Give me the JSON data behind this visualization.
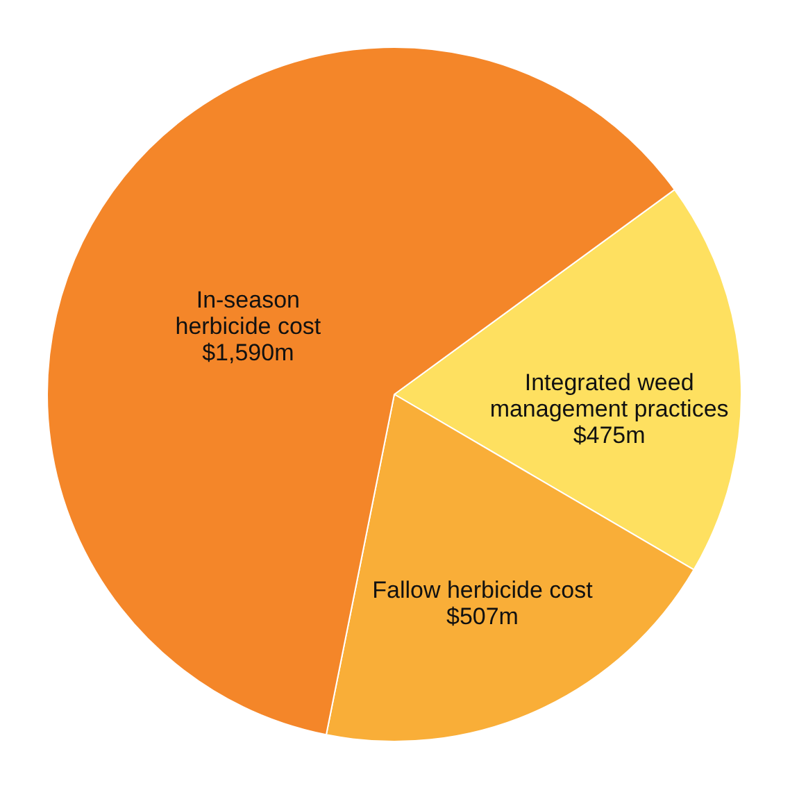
{
  "chart_data": {
    "type": "pie",
    "categories": [
      "Integrated weed management practices",
      "Fallow herbicide cost",
      "In-season herbicide cost"
    ],
    "values": [
      475,
      507,
      1590
    ],
    "colors": [
      "#fee060",
      "#f9ae38",
      "#f48629"
    ],
    "value_labels": [
      "$475m",
      "$507m",
      "$1,590m"
    ],
    "legend": false
  }
}
